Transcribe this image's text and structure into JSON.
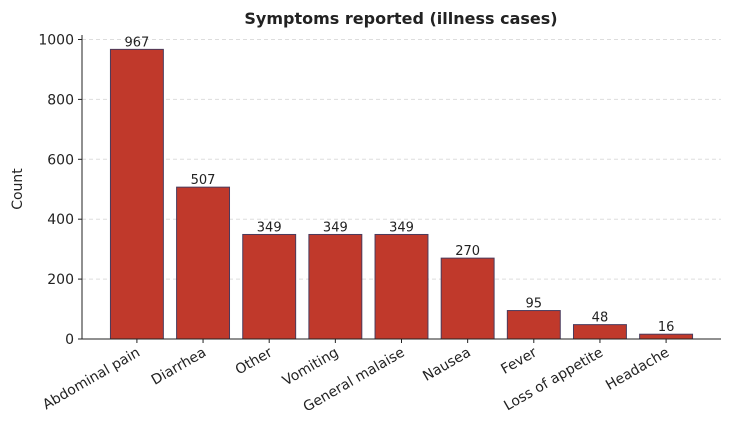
{
  "chart_data": {
    "type": "bar",
    "title": "Symptoms reported (illness cases)",
    "ylabel": "Count",
    "categories": [
      "Abdominal pain",
      "Diarrhea",
      "Other",
      "Vomiting",
      "General malaise",
      "Nausea",
      "Fever",
      "Loss of appetite",
      "Headache"
    ],
    "values": [
      967,
      507,
      349,
      349,
      349,
      270,
      95,
      48,
      16
    ],
    "color": "#c0392b",
    "edgecolor": "#4a3b5c",
    "ylim": [
      0,
      1015
    ],
    "yticks": [
      0,
      200,
      400,
      600,
      800,
      1000
    ],
    "grid": true
  }
}
